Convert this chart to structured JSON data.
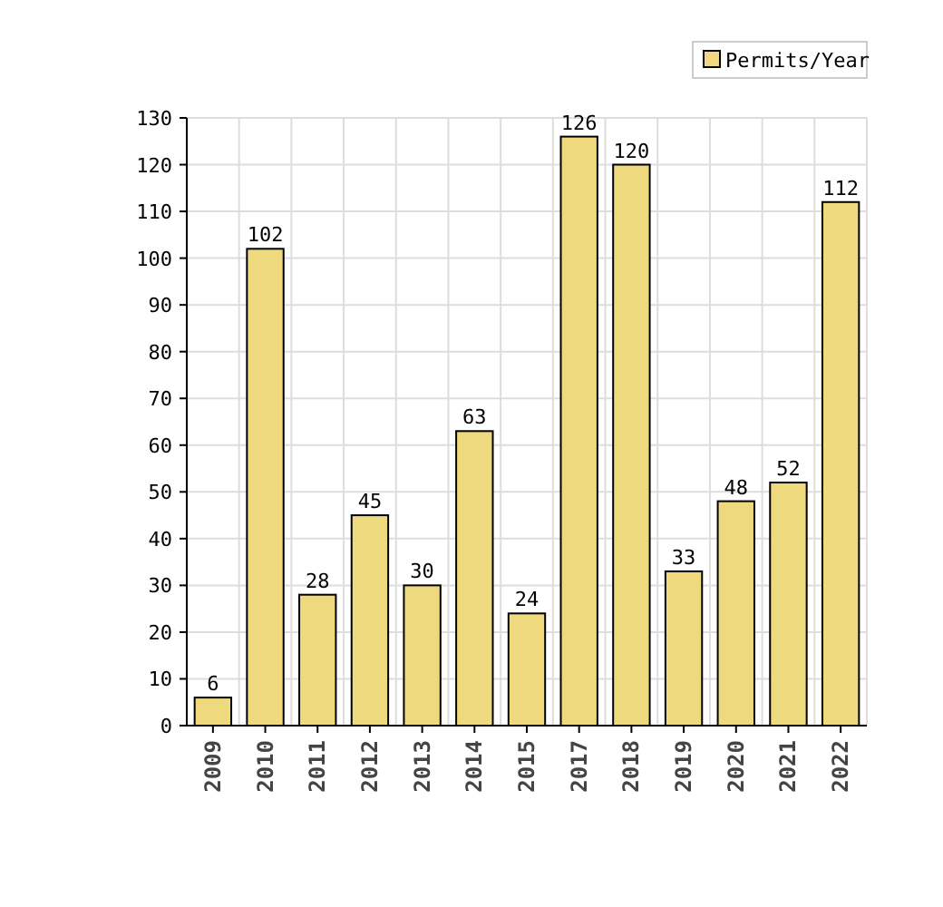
{
  "chart_data": {
    "type": "bar",
    "categories": [
      "2009",
      "2010",
      "2011",
      "2012",
      "2013",
      "2014",
      "2015",
      "2017",
      "2018",
      "2019",
      "2020",
      "2021",
      "2022"
    ],
    "series": [
      {
        "name": "Permits/Year",
        "color": "#eed97f",
        "values": [
          6,
          102,
          28,
          45,
          30,
          63,
          24,
          126,
          120,
          33,
          48,
          52,
          112
        ]
      }
    ],
    "ylim": [
      0,
      130
    ],
    "yticks": [
      0,
      10,
      20,
      30,
      40,
      50,
      60,
      70,
      80,
      90,
      100,
      110,
      120,
      130
    ],
    "grid": true,
    "legend": "top right",
    "data_labels": true
  }
}
